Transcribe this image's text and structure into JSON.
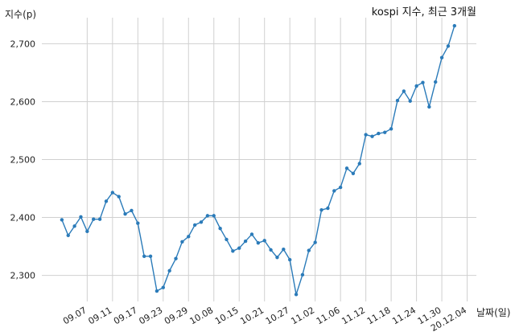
{
  "chart_data": {
    "type": "line",
    "title": "kospi 지수, 최근 3개월",
    "xlabel": "날짜(일)",
    "ylabel": "지수(p)",
    "ylim": [
      2255,
      2745
    ],
    "yticks": [
      2300,
      2400,
      2500,
      2600,
      2700
    ],
    "ytick_labels": [
      "2,300",
      "2,400",
      "2,500",
      "2,600",
      "2,700"
    ],
    "grid": true,
    "legend": "none",
    "color": "#2b7bb9",
    "xtick_labels": [
      "09.07",
      "09.11",
      "09.17",
      "09.23",
      "09.29",
      "10.08",
      "10.15",
      "10.21",
      "10.27",
      "11.02",
      "11.06",
      "11.12",
      "11.18",
      "11.24",
      "11.30",
      "20.12.04"
    ],
    "xtick_indices": [
      4,
      8,
      12,
      16,
      20,
      24,
      28,
      32,
      36,
      40,
      44,
      48,
      52,
      56,
      60,
      64
    ],
    "series": [
      {
        "values": [
          2396,
          2369,
          2385,
          2401,
          2376,
          2397,
          2397,
          2428,
          2443,
          2436,
          2406,
          2412,
          2390,
          2333,
          2333,
          2273,
          2279,
          2308,
          2329,
          2358,
          2367,
          2387,
          2392,
          2403,
          2403,
          2381,
          2362,
          2342,
          2347,
          2359,
          2371,
          2356,
          2360,
          2344,
          2331,
          2345,
          2327,
          2267,
          2301,
          2343,
          2357,
          2413,
          2416,
          2446,
          2452,
          2485,
          2476,
          2493,
          2543,
          2540,
          2545,
          2547,
          2553,
          2602,
          2618,
          2601,
          2627,
          2633,
          2591,
          2634,
          2676,
          2696,
          2731
        ]
      }
    ]
  }
}
